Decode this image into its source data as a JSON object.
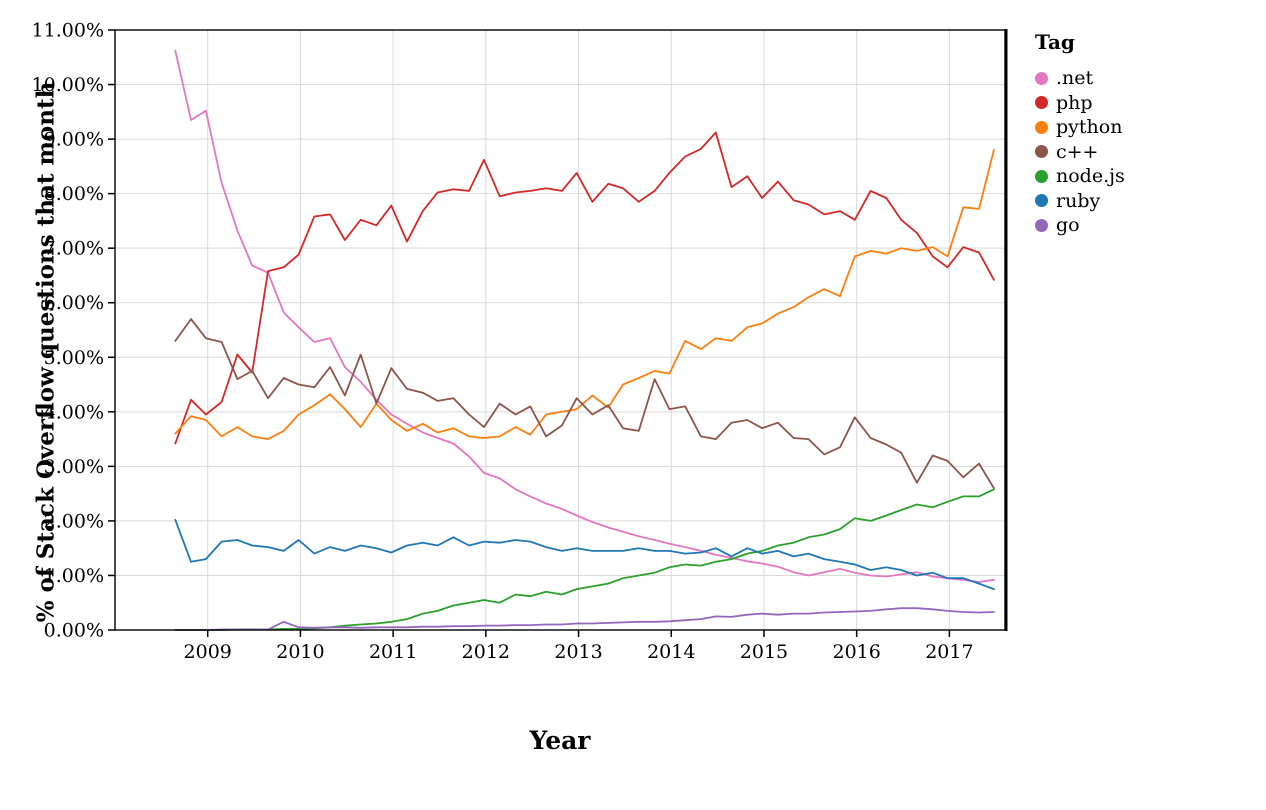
{
  "chart_data": {
    "type": "line",
    "title": "",
    "xlabel": "Year",
    "ylabel": "% of Stack Overflow questions that month",
    "legend_title": "Tag",
    "legend_position": "right",
    "grid": true,
    "xlim": [
      2008.0,
      2017.6
    ],
    "ylim": [
      0,
      11
    ],
    "x_ticks": [
      2009,
      2010,
      2011,
      2012,
      2013,
      2014,
      2015,
      2016,
      2017
    ],
    "y_ticks": {
      "values": [
        0,
        1,
        2,
        3,
        4,
        5,
        6,
        7,
        8,
        9,
        10,
        11
      ],
      "labels": [
        "0.00%",
        "1.00%",
        "2.00%",
        "3.00%",
        "4.00%",
        "5.00%",
        "6.00%",
        "7.00%",
        "8.00%",
        "9.00%",
        "10.00%",
        "11.00%"
      ]
    },
    "colors": {
      "grid": "#d9d9d9",
      "axis": "#000000",
      "background": "#ffffff"
    },
    "x": [
      2008.65,
      2008.82,
      2008.98,
      2009.15,
      2009.32,
      2009.48,
      2009.65,
      2009.82,
      2009.98,
      2010.15,
      2010.32,
      2010.48,
      2010.65,
      2010.82,
      2010.98,
      2011.15,
      2011.32,
      2011.48,
      2011.65,
      2011.82,
      2011.98,
      2012.15,
      2012.32,
      2012.48,
      2012.65,
      2012.82,
      2012.98,
      2013.15,
      2013.32,
      2013.48,
      2013.65,
      2013.82,
      2013.98,
      2014.15,
      2014.32,
      2014.48,
      2014.65,
      2014.82,
      2014.98,
      2015.15,
      2015.32,
      2015.48,
      2015.65,
      2015.82,
      2015.98,
      2016.15,
      2016.32,
      2016.48,
      2016.65,
      2016.82,
      2016.98,
      2017.15,
      2017.32,
      2017.48
    ],
    "series": [
      {
        "id": "dotnet",
        "name": ".net",
        "color": "#e377c2",
        "values": [
          10.62,
          9.35,
          9.52,
          8.2,
          7.32,
          6.68,
          6.55,
          5.82,
          5.55,
          5.28,
          5.35,
          4.82,
          4.55,
          4.22,
          3.95,
          3.78,
          3.62,
          3.52,
          3.42,
          3.18,
          2.88,
          2.78,
          2.58,
          2.45,
          2.32,
          2.22,
          2.1,
          1.98,
          1.88,
          1.8,
          1.72,
          1.65,
          1.58,
          1.52,
          1.45,
          1.38,
          1.32,
          1.26,
          1.22,
          1.16,
          1.06,
          1.0,
          1.06,
          1.12,
          1.05,
          1.0,
          0.98,
          1.02,
          1.06,
          0.98,
          0.95,
          0.92,
          0.88,
          0.92
        ]
      },
      {
        "id": "php",
        "name": "php",
        "color": "#d62728",
        "values": [
          3.42,
          4.22,
          3.95,
          4.18,
          5.05,
          4.72,
          6.58,
          6.65,
          6.88,
          7.58,
          7.62,
          7.15,
          7.52,
          7.42,
          7.78,
          7.12,
          7.68,
          8.02,
          8.08,
          8.05,
          8.62,
          7.95,
          8.02,
          8.05,
          8.1,
          8.05,
          8.38,
          7.85,
          8.18,
          8.1,
          7.85,
          8.05,
          8.38,
          8.68,
          8.82,
          9.12,
          8.12,
          8.32,
          7.92,
          8.22,
          7.88,
          7.8,
          7.62,
          7.68,
          7.52,
          8.05,
          7.92,
          7.52,
          7.28,
          6.85,
          6.65,
          7.02,
          6.92,
          6.42
        ]
      },
      {
        "id": "python",
        "name": "python",
        "color": "#ff7f0e",
        "values": [
          3.6,
          3.92,
          3.85,
          3.55,
          3.72,
          3.55,
          3.5,
          3.65,
          3.95,
          4.12,
          4.32,
          4.05,
          3.72,
          4.15,
          3.85,
          3.65,
          3.78,
          3.62,
          3.7,
          3.55,
          3.52,
          3.55,
          3.72,
          3.58,
          3.95,
          4.0,
          4.05,
          4.3,
          4.08,
          4.5,
          4.62,
          4.75,
          4.7,
          5.3,
          5.15,
          5.35,
          5.3,
          5.55,
          5.62,
          5.8,
          5.92,
          6.1,
          6.25,
          6.12,
          6.85,
          6.95,
          6.9,
          7.0,
          6.95,
          7.02,
          6.85,
          7.75,
          7.72,
          8.8
        ]
      },
      {
        "id": "cpp",
        "name": "c++",
        "color": "#8c564b",
        "values": [
          5.3,
          5.7,
          5.35,
          5.28,
          4.6,
          4.75,
          4.25,
          4.62,
          4.5,
          4.45,
          4.82,
          4.3,
          5.05,
          4.15,
          4.8,
          4.42,
          4.35,
          4.2,
          4.25,
          3.95,
          3.72,
          4.15,
          3.95,
          4.1,
          3.55,
          3.75,
          4.25,
          3.95,
          4.12,
          3.7,
          3.65,
          4.6,
          4.05,
          4.1,
          3.55,
          3.5,
          3.8,
          3.85,
          3.7,
          3.8,
          3.52,
          3.5,
          3.22,
          3.35,
          3.9,
          3.52,
          3.4,
          3.25,
          2.7,
          3.2,
          3.1,
          2.8,
          3.05,
          2.6
        ]
      },
      {
        "id": "nodejs",
        "name": "node.js",
        "color": "#2ca02c",
        "values": [
          0.0,
          0.0,
          0.0,
          0.0,
          0.01,
          0.01,
          0.01,
          0.02,
          0.02,
          0.03,
          0.05,
          0.08,
          0.1,
          0.12,
          0.15,
          0.2,
          0.3,
          0.35,
          0.45,
          0.5,
          0.55,
          0.5,
          0.65,
          0.62,
          0.7,
          0.65,
          0.75,
          0.8,
          0.85,
          0.95,
          1.0,
          1.05,
          1.15,
          1.2,
          1.18,
          1.25,
          1.3,
          1.4,
          1.45,
          1.55,
          1.6,
          1.7,
          1.75,
          1.85,
          2.05,
          2.0,
          2.1,
          2.2,
          2.3,
          2.25,
          2.35,
          2.45,
          2.45,
          2.58
        ]
      },
      {
        "id": "ruby",
        "name": "ruby",
        "color": "#1f77b4",
        "values": [
          2.02,
          1.25,
          1.3,
          1.62,
          1.65,
          1.55,
          1.52,
          1.45,
          1.65,
          1.4,
          1.52,
          1.45,
          1.55,
          1.5,
          1.42,
          1.55,
          1.6,
          1.55,
          1.7,
          1.55,
          1.62,
          1.6,
          1.65,
          1.62,
          1.52,
          1.45,
          1.5,
          1.45,
          1.45,
          1.45,
          1.5,
          1.45,
          1.45,
          1.4,
          1.42,
          1.5,
          1.35,
          1.5,
          1.4,
          1.45,
          1.35,
          1.4,
          1.3,
          1.25,
          1.2,
          1.1,
          1.15,
          1.1,
          1.0,
          1.05,
          0.95,
          0.95,
          0.85,
          0.75
        ]
      },
      {
        "id": "go",
        "name": "go",
        "color": "#9467bd",
        "values": [
          0.0,
          0.0,
          0.0,
          0.01,
          0.01,
          0.01,
          0.01,
          0.15,
          0.05,
          0.04,
          0.05,
          0.05,
          0.04,
          0.05,
          0.05,
          0.05,
          0.06,
          0.06,
          0.07,
          0.07,
          0.08,
          0.08,
          0.09,
          0.09,
          0.1,
          0.1,
          0.12,
          0.12,
          0.13,
          0.14,
          0.15,
          0.15,
          0.16,
          0.18,
          0.2,
          0.25,
          0.24,
          0.28,
          0.3,
          0.28,
          0.3,
          0.3,
          0.32,
          0.33,
          0.34,
          0.35,
          0.38,
          0.4,
          0.4,
          0.38,
          0.35,
          0.33,
          0.32,
          0.33
        ]
      }
    ]
  }
}
